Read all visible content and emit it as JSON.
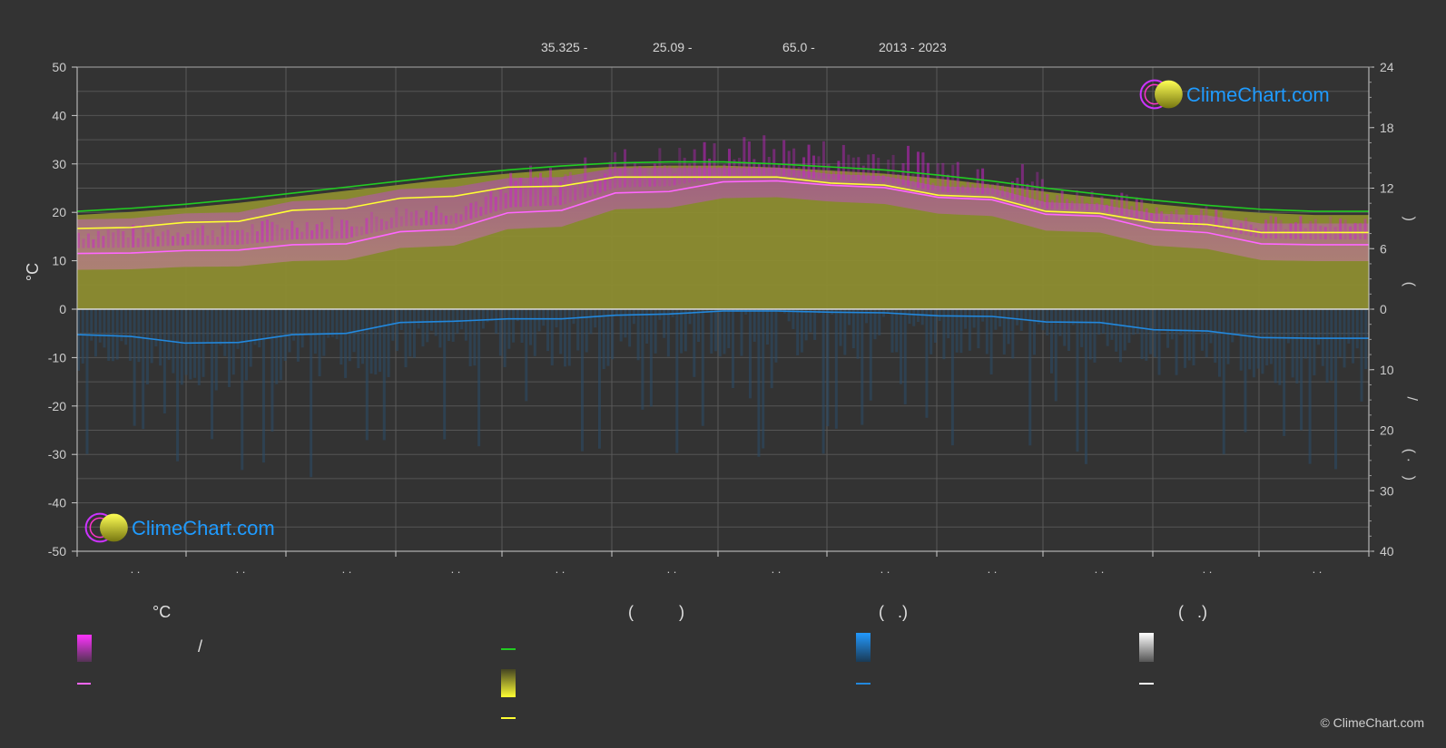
{
  "header": {
    "lat": "35.325 -",
    "lon": "25.09 -",
    "elev": "65.0 -",
    "years": "2013 - 2023"
  },
  "brand": {
    "name": "ClimeChart.com",
    "copyright": "© ClimeChart.com"
  },
  "colors": {
    "background": "#333333",
    "daylight": "#22cc22",
    "sunshine": "#ffff33",
    "sunshine_fill": "#8d8d30",
    "temp_mean": "#ff66ff",
    "temp_range": "#cc22cc",
    "precip": "#2288dd",
    "brand": "#1f9bff"
  },
  "legend": {
    "temp_header": "°C",
    "sun_header": "(          )",
    "rain_header": "(   .)",
    "snow_header": "(   .)",
    "slash": "/"
  },
  "chart_data": {
    "type": "line",
    "month_labels": [
      ". .",
      ". .",
      ". .",
      ". .",
      ". .",
      ". .",
      ". .",
      ". .",
      ". .",
      ". .",
      ". .",
      ". ."
    ],
    "left_axis": {
      "label": "°C",
      "range": [
        -50,
        50
      ],
      "ticks": [
        "50",
        "40",
        "30",
        "20",
        "10",
        "0",
        "-10",
        "-20",
        "-30",
        "-40",
        "-50"
      ]
    },
    "right_axis_top": {
      "range": [
        0,
        24
      ],
      "ticks": [
        "24",
        "18",
        "12",
        "6",
        "0"
      ],
      "label_glyphs": [
        "(",
        ")",
        "(",
        ")"
      ]
    },
    "right_axis_bottom": {
      "range": [
        0,
        40
      ],
      "ticks": [
        "10",
        "20",
        "30",
        "40"
      ],
      "label_glyphs": [
        "/",
        "(",
        "·",
        ")"
      ]
    },
    "x": [
      0,
      0.5,
      1,
      1.5,
      2,
      2.5,
      3,
      3.5,
      4,
      4.5,
      5,
      5.5,
      6,
      6.5,
      7,
      7.5,
      8,
      8.5,
      9,
      9.5,
      10,
      10.5,
      11,
      11.5,
      12
    ],
    "series": [
      {
        "key": "daylight",
        "axis": "hours",
        "values": [
          9.7,
          10.0,
          10.4,
          10.9,
          11.5,
          12.1,
          12.7,
          13.3,
          13.8,
          14.2,
          14.5,
          14.6,
          14.6,
          14.4,
          14.1,
          13.8,
          13.3,
          12.7,
          12.0,
          11.4,
          10.8,
          10.3,
          9.9,
          9.7,
          9.7
        ]
      },
      {
        "key": "sunshine",
        "axis": "hours",
        "values": [
          8.0,
          8.1,
          8.6,
          8.7,
          9.8,
          10.0,
          11.0,
          11.2,
          12.1,
          12.2,
          13.1,
          13.1,
          13.1,
          13.1,
          12.5,
          12.3,
          11.3,
          11.1,
          9.7,
          9.5,
          8.6,
          8.4,
          7.6,
          7.6,
          7.6
        ]
      },
      {
        "key": "temp_mean",
        "axis": "celsius",
        "values": [
          11.5,
          11.6,
          12.1,
          12.2,
          13.3,
          13.5,
          16.0,
          16.5,
          19.9,
          20.4,
          24.0,
          24.3,
          26.3,
          26.5,
          25.6,
          25.1,
          23.1,
          22.6,
          19.6,
          19.2,
          16.5,
          15.8,
          13.5,
          13.3,
          13.3
        ]
      },
      {
        "key": "precip",
        "axis": "mm",
        "values": [
          4.2,
          4.5,
          5.6,
          5.5,
          4.2,
          4.0,
          2.2,
          2.0,
          1.6,
          1.6,
          1.0,
          0.8,
          0.3,
          0.3,
          0.5,
          0.6,
          1.1,
          1.2,
          2.1,
          2.2,
          3.4,
          3.6,
          4.7,
          4.8,
          4.8
        ]
      }
    ]
  }
}
